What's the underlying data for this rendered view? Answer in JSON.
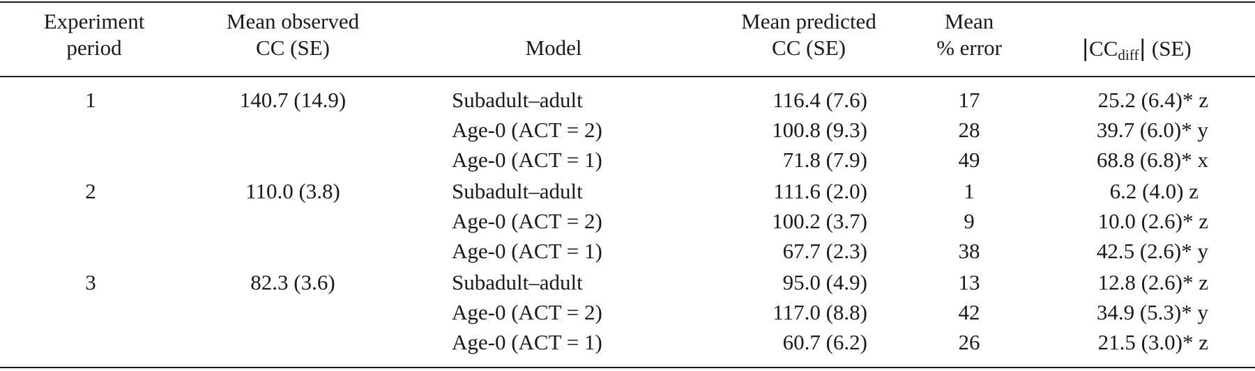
{
  "table": {
    "headers": {
      "period": [
        "Experiment",
        "period"
      ],
      "observed": [
        "Mean observed",
        "CC (SE)"
      ],
      "model": "Model",
      "predicted": [
        "Mean predicted",
        "CC (SE)"
      ],
      "error": [
        "Mean",
        "% error"
      ],
      "diff": {
        "bar_left": "|",
        "cc": "CC",
        "subscript": "diff",
        "bar_right": "|",
        "suffix": " (SE)"
      }
    },
    "rows": [
      {
        "period": "1",
        "observed": "140.7 (14.9)",
        "model": "Subadult–adult",
        "predicted": "116.4 (7.6)",
        "error": "17",
        "diff": "25.2 (6.4)* z"
      },
      {
        "period": "",
        "observed": "",
        "model": "Age-0 (ACT = 2)",
        "predicted": "100.8 (9.3)",
        "error": "28",
        "diff": "39.7 (6.0)* y"
      },
      {
        "period": "",
        "observed": "",
        "model": "Age-0 (ACT = 1)",
        "predicted": "71.8 (7.9)",
        "error": "49",
        "diff": "68.8 (6.8)* x"
      },
      {
        "period": "2",
        "observed": "110.0 (3.8)",
        "model": "Subadult–adult",
        "predicted": "111.6 (2.0)",
        "error": "1",
        "diff": "6.2 (4.0) z"
      },
      {
        "period": "",
        "observed": "",
        "model": "Age-0 (ACT = 2)",
        "predicted": "100.2 (3.7)",
        "error": "9",
        "diff": "10.0 (2.6)* z"
      },
      {
        "period": "",
        "observed": "",
        "model": "Age-0 (ACT = 1)",
        "predicted": "67.7 (2.3)",
        "error": "38",
        "diff": "42.5 (2.6)* y"
      },
      {
        "period": "3",
        "observed": "82.3 (3.6)",
        "model": "Subadult–adult",
        "predicted": "95.0 (4.9)",
        "error": "13",
        "diff": "12.8 (2.6)* z"
      },
      {
        "period": "",
        "observed": "",
        "model": "Age-0 (ACT = 2)",
        "predicted": "117.0 (8.8)",
        "error": "42",
        "diff": "34.9 (5.3)* y"
      },
      {
        "period": "",
        "observed": "",
        "model": "Age-0 (ACT = 1)",
        "predicted": "60.7 (6.2)",
        "error": "26",
        "diff": "21.5 (3.0)* z"
      }
    ]
  }
}
